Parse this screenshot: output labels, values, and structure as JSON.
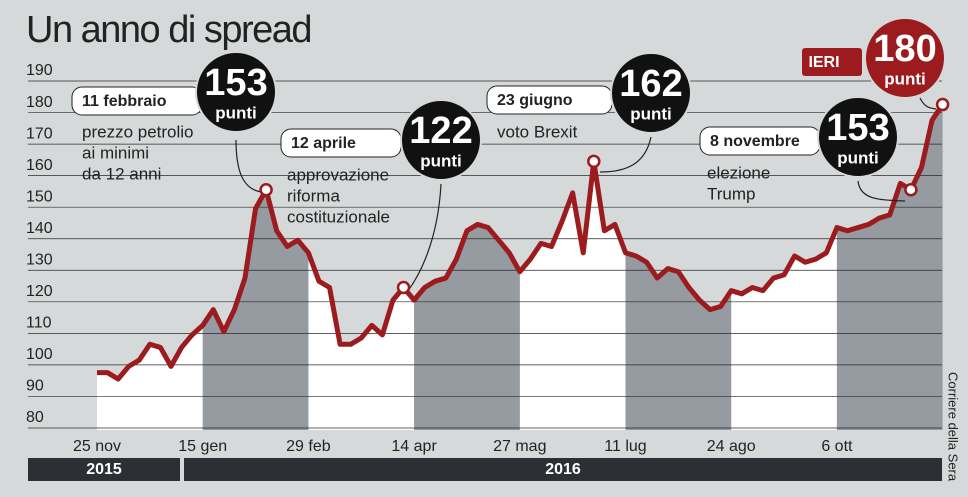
{
  "chart_data": {
    "type": "line",
    "title": "Un anno di spread",
    "categories": [
      "25 nov",
      null,
      null,
      null,
      null,
      null,
      null,
      null,
      null,
      null,
      "15 gen",
      null,
      null,
      null,
      null,
      null,
      null,
      null,
      null,
      null,
      "29 feb",
      null,
      null,
      null,
      null,
      null,
      null,
      null,
      null,
      null,
      "14 apr",
      null,
      null,
      null,
      null,
      null,
      null,
      null,
      null,
      null,
      "27 mag",
      null,
      null,
      null,
      null,
      null,
      null,
      null,
      null,
      null,
      "11 lug",
      null,
      null,
      null,
      null,
      null,
      null,
      null,
      null,
      null,
      "24 ago",
      null,
      null,
      null,
      null,
      null,
      null,
      null,
      null,
      null,
      "6 ott",
      null,
      null,
      null,
      null,
      null,
      null,
      null,
      null,
      null,
      null
    ],
    "values": [
      95,
      95,
      93,
      97,
      99,
      104,
      103,
      97,
      103,
      107,
      110,
      115,
      108,
      115,
      125,
      147,
      153,
      140,
      135,
      137,
      133,
      124,
      122,
      104,
      104,
      106,
      110,
      107,
      118,
      122,
      118,
      122,
      124,
      125,
      131,
      140,
      142,
      141,
      137,
      133,
      127,
      131,
      136,
      135,
      143,
      152,
      133,
      162,
      140,
      142,
      133,
      132,
      130,
      125,
      128,
      127,
      122,
      118,
      115,
      116,
      121,
      120,
      122,
      121,
      125,
      126,
      132,
      130,
      131,
      133,
      141,
      140,
      141,
      142,
      144,
      145,
      155,
      153,
      160,
      175,
      180
    ],
    "color": "#9b1b1e",
    "ylim": [
      80,
      190
    ],
    "yticks": [
      80,
      90,
      100,
      110,
      120,
      130,
      140,
      150,
      160,
      170,
      180,
      190
    ],
    "grid": true,
    "years": [
      "2015",
      "2016"
    ],
    "annotations": [
      {
        "date": "11 febbraio",
        "value": 153,
        "unit": "punti",
        "text": [
          "prezzo petrolio",
          "ai minimi",
          "da 12 anni"
        ]
      },
      {
        "date": "12 aprile",
        "value": 122,
        "unit": "punti",
        "text": [
          "approvazione",
          "riforma",
          "costituzionale"
        ]
      },
      {
        "date": "23 giugno",
        "value": 162,
        "unit": "punti",
        "text": [
          "voto Brexit"
        ]
      },
      {
        "date": "8 novembre",
        "value": 153,
        "unit": "punti",
        "text": [
          "elezione",
          "Trump"
        ]
      },
      {
        "date": "IERI",
        "value": 180,
        "unit": "punti",
        "text": []
      }
    ],
    "source": "Corriere della Sera"
  }
}
